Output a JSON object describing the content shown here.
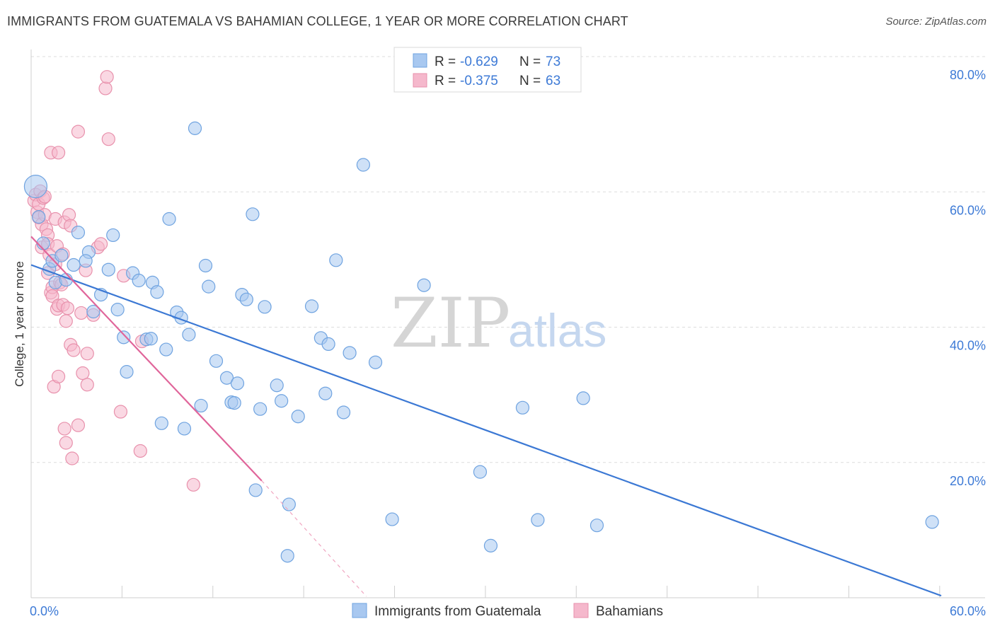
{
  "header": {
    "title": "IMMIGRANTS FROM GUATEMALA VS BAHAMIAN COLLEGE, 1 YEAR OR MORE CORRELATION CHART",
    "source": "Source: ZipAtlas.com"
  },
  "watermark": {
    "zip": "ZIP",
    "atlas": "atlas"
  },
  "legend": {
    "rows": [
      {
        "r_label": "R =",
        "r_value": "-0.629",
        "n_label": "N =",
        "n_value": "73",
        "color": "#a8c8f0"
      },
      {
        "r_label": "R =",
        "r_value": "-0.375",
        "n_label": "N =",
        "n_value": "63",
        "color": "#f5b8cc"
      }
    ]
  },
  "bottom_legend": {
    "items": [
      {
        "label": "Immigrants from Guatemala",
        "color": "#a8c8f0"
      },
      {
        "label": "Bahamians",
        "color": "#f5b8cc"
      }
    ]
  },
  "chart_data": {
    "type": "scatter",
    "title": "IMMIGRANTS FROM GUATEMALA VS BAHAMIAN COLLEGE, 1 YEAR OR MORE CORRELATION CHART",
    "xlabel": "",
    "ylabel": "College, 1 year or more",
    "xlim": [
      0,
      60
    ],
    "ylim": [
      0,
      80
    ],
    "x_ticks": [
      "0.0%",
      "60.0%"
    ],
    "y_ticks": [
      "20.0%",
      "40.0%",
      "60.0%",
      "80.0%"
    ],
    "y_tick_values": [
      20,
      40,
      60,
      80
    ],
    "grid": true,
    "legend_position": "top-center",
    "series": [
      {
        "name": "Immigrants from Guatemala",
        "color": "#6fa3e0",
        "fill": "#a8c8f0",
        "trend": {
          "x": [
            0,
            60
          ],
          "y": [
            49.2,
            0.3
          ],
          "color": "#3b78d4"
        },
        "points": [
          [
            0.3,
            60.8
          ],
          [
            0.5,
            56.3
          ],
          [
            0.8,
            52.4
          ],
          [
            1.2,
            48.6
          ],
          [
            1.4,
            49.8
          ],
          [
            1.6,
            46.6
          ],
          [
            2.0,
            50.6
          ],
          [
            2.3,
            47.0
          ],
          [
            2.8,
            49.2
          ],
          [
            3.1,
            54.0
          ],
          [
            3.8,
            51.1
          ],
          [
            3.6,
            49.8
          ],
          [
            4.1,
            42.3
          ],
          [
            4.6,
            44.8
          ],
          [
            5.1,
            48.5
          ],
          [
            5.4,
            53.6
          ],
          [
            5.7,
            42.6
          ],
          [
            6.1,
            38.5
          ],
          [
            6.3,
            33.4
          ],
          [
            6.7,
            48.0
          ],
          [
            7.1,
            46.9
          ],
          [
            7.6,
            38.2
          ],
          [
            7.9,
            38.3
          ],
          [
            8.0,
            46.6
          ],
          [
            8.3,
            45.2
          ],
          [
            8.6,
            25.8
          ],
          [
            8.9,
            36.7
          ],
          [
            9.1,
            56.0
          ],
          [
            9.6,
            42.2
          ],
          [
            9.9,
            41.4
          ],
          [
            10.1,
            25.0
          ],
          [
            10.4,
            38.9
          ],
          [
            10.8,
            69.4
          ],
          [
            11.2,
            28.4
          ],
          [
            11.5,
            49.1
          ],
          [
            11.7,
            46.0
          ],
          [
            12.2,
            35.0
          ],
          [
            12.9,
            32.5
          ],
          [
            13.2,
            28.9
          ],
          [
            13.4,
            28.8
          ],
          [
            13.6,
            31.7
          ],
          [
            13.9,
            44.8
          ],
          [
            14.2,
            44.1
          ],
          [
            14.6,
            56.7
          ],
          [
            14.8,
            15.9
          ],
          [
            15.1,
            27.9
          ],
          [
            15.4,
            43.0
          ],
          [
            16.2,
            31.4
          ],
          [
            16.5,
            29.1
          ],
          [
            16.9,
            6.2
          ],
          [
            17.0,
            13.8
          ],
          [
            17.6,
            26.8
          ],
          [
            18.5,
            43.1
          ],
          [
            19.1,
            38.4
          ],
          [
            19.4,
            30.2
          ],
          [
            19.6,
            37.5
          ],
          [
            20.1,
            49.9
          ],
          [
            20.6,
            27.4
          ],
          [
            21.0,
            36.2
          ],
          [
            21.9,
            64.0
          ],
          [
            22.7,
            34.8
          ],
          [
            23.8,
            11.6
          ],
          [
            25.9,
            46.2
          ],
          [
            29.6,
            18.6
          ],
          [
            30.3,
            7.7
          ],
          [
            32.4,
            28.1
          ],
          [
            33.4,
            11.5
          ],
          [
            36.4,
            29.5
          ],
          [
            37.3,
            10.7
          ],
          [
            59.4,
            11.2
          ]
        ]
      },
      {
        "name": "Bahamians",
        "color": "#e891ac",
        "fill": "#f5b8cc",
        "trend": {
          "x": [
            0,
            15.2
          ],
          "y": [
            53.4,
            17.3
          ],
          "dashed_x": [
            15.2,
            22.1
          ],
          "dashed_y": [
            17.3,
            0.2
          ],
          "color": "#e0659a"
        },
        "points": [
          [
            0.2,
            58.7
          ],
          [
            0.3,
            59.6
          ],
          [
            0.4,
            57.0
          ],
          [
            0.5,
            58.2
          ],
          [
            0.5,
            56.2
          ],
          [
            0.6,
            60.1
          ],
          [
            0.7,
            55.2
          ],
          [
            0.7,
            51.8
          ],
          [
            0.8,
            59.1
          ],
          [
            0.9,
            56.6
          ],
          [
            0.9,
            59.3
          ],
          [
            1.0,
            54.5
          ],
          [
            1.1,
            53.6
          ],
          [
            1.1,
            52.3
          ],
          [
            1.1,
            48.0
          ],
          [
            1.2,
            50.7
          ],
          [
            1.3,
            45.1
          ],
          [
            1.3,
            65.8
          ],
          [
            1.4,
            45.9
          ],
          [
            1.4,
            44.6
          ],
          [
            1.5,
            31.2
          ],
          [
            1.6,
            49.3
          ],
          [
            1.6,
            56.0
          ],
          [
            1.7,
            52.0
          ],
          [
            1.7,
            42.7
          ],
          [
            1.8,
            32.7
          ],
          [
            1.8,
            43.2
          ],
          [
            1.8,
            65.8
          ],
          [
            1.9,
            46.6
          ],
          [
            2.0,
            46.3
          ],
          [
            2.1,
            50.8
          ],
          [
            2.1,
            43.3
          ],
          [
            2.2,
            55.5
          ],
          [
            2.2,
            25.0
          ],
          [
            2.3,
            22.9
          ],
          [
            2.3,
            40.9
          ],
          [
            2.4,
            42.8
          ],
          [
            2.5,
            56.6
          ],
          [
            2.6,
            55.0
          ],
          [
            2.6,
            37.4
          ],
          [
            2.7,
            20.6
          ],
          [
            2.8,
            36.6
          ],
          [
            3.1,
            68.9
          ],
          [
            3.1,
            25.5
          ],
          [
            3.3,
            42.1
          ],
          [
            3.4,
            33.2
          ],
          [
            3.6,
            48.4
          ],
          [
            3.7,
            36.1
          ],
          [
            3.7,
            31.5
          ],
          [
            4.1,
            41.8
          ],
          [
            4.4,
            51.8
          ],
          [
            4.6,
            52.3
          ],
          [
            4.9,
            75.3
          ],
          [
            5.0,
            77.0
          ],
          [
            5.1,
            67.8
          ],
          [
            5.9,
            27.5
          ],
          [
            6.1,
            47.6
          ],
          [
            7.2,
            21.7
          ],
          [
            7.3,
            37.9
          ],
          [
            10.7,
            16.7
          ]
        ]
      }
    ]
  }
}
